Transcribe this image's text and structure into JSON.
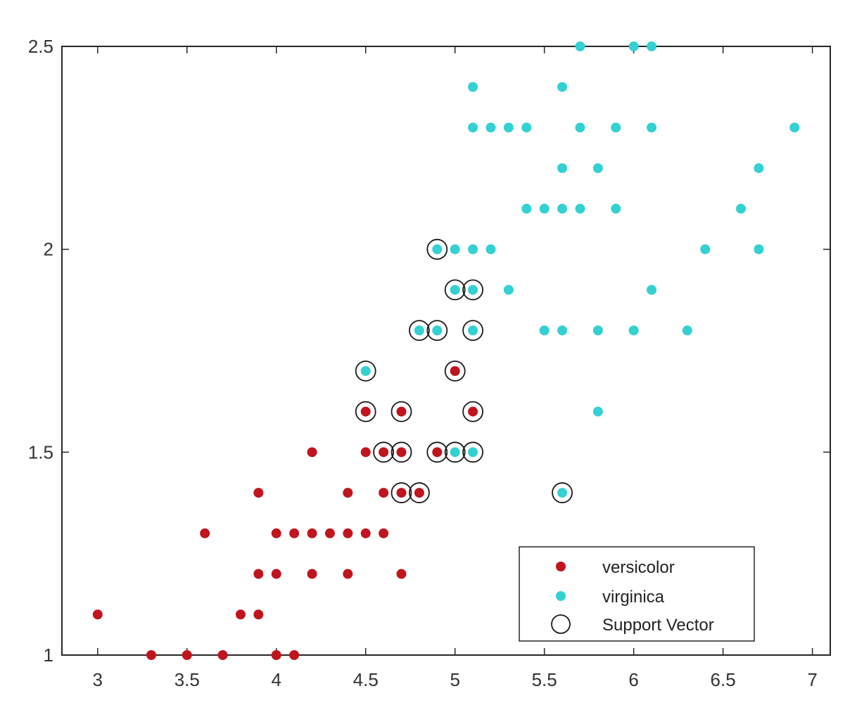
{
  "chart_data": {
    "type": "scatter",
    "title": "",
    "xlabel": "",
    "ylabel": "",
    "xlim": [
      2.8,
      7.1
    ],
    "ylim": [
      1.0,
      2.5
    ],
    "xticks": [
      3,
      3.5,
      4,
      4.5,
      5,
      5.5,
      6,
      6.5,
      7
    ],
    "xtick_labels": [
      "3",
      "3.5",
      "4",
      "4.5",
      "5",
      "5.5",
      "6",
      "6.5",
      "7"
    ],
    "yticks": [
      1,
      1.5,
      2,
      2.5
    ],
    "ytick_labels": [
      "1",
      "1.5",
      "2",
      "2.5"
    ],
    "grid": false,
    "legend_position": "bottom-right",
    "series": [
      {
        "name": "versicolor",
        "marker": "filled-dot",
        "color": "#c0141e",
        "points": [
          [
            3.0,
            1.1
          ],
          [
            3.3,
            1.0
          ],
          [
            3.5,
            1.0
          ],
          [
            3.7,
            1.0
          ],
          [
            4.0,
            1.0
          ],
          [
            4.1,
            1.0
          ],
          [
            3.8,
            1.1
          ],
          [
            3.9,
            1.1
          ],
          [
            3.9,
            1.2
          ],
          [
            4.0,
            1.2
          ],
          [
            4.2,
            1.2
          ],
          [
            4.4,
            1.2
          ],
          [
            4.7,
            1.2
          ],
          [
            3.6,
            1.3
          ],
          [
            4.0,
            1.3
          ],
          [
            4.1,
            1.3
          ],
          [
            4.2,
            1.3
          ],
          [
            4.3,
            1.3
          ],
          [
            4.4,
            1.3
          ],
          [
            4.5,
            1.3
          ],
          [
            4.6,
            1.3
          ],
          [
            3.9,
            1.4
          ],
          [
            4.4,
            1.4
          ],
          [
            4.6,
            1.4
          ],
          [
            4.7,
            1.4
          ],
          [
            4.8,
            1.4
          ],
          [
            4.2,
            1.5
          ],
          [
            4.5,
            1.5
          ],
          [
            4.6,
            1.5
          ],
          [
            4.7,
            1.5
          ],
          [
            4.9,
            1.5
          ],
          [
            4.5,
            1.6
          ],
          [
            4.7,
            1.6
          ],
          [
            5.1,
            1.6
          ],
          [
            5.0,
            1.7
          ]
        ]
      },
      {
        "name": "virginica",
        "marker": "filled-dot",
        "color": "#33d1d1",
        "points": [
          [
            5.0,
            1.5
          ],
          [
            5.1,
            1.5
          ],
          [
            5.6,
            1.4
          ],
          [
            5.8,
            1.6
          ],
          [
            4.5,
            1.7
          ],
          [
            4.8,
            1.8
          ],
          [
            4.9,
            1.8
          ],
          [
            5.1,
            1.8
          ],
          [
            5.5,
            1.8
          ],
          [
            5.6,
            1.8
          ],
          [
            5.8,
            1.8
          ],
          [
            6.0,
            1.8
          ],
          [
            6.3,
            1.8
          ],
          [
            5.0,
            1.9
          ],
          [
            5.1,
            1.9
          ],
          [
            5.3,
            1.9
          ],
          [
            6.1,
            1.9
          ],
          [
            4.9,
            2.0
          ],
          [
            5.0,
            2.0
          ],
          [
            5.1,
            2.0
          ],
          [
            5.2,
            2.0
          ],
          [
            6.4,
            2.0
          ],
          [
            6.7,
            2.0
          ],
          [
            5.4,
            2.1
          ],
          [
            5.5,
            2.1
          ],
          [
            5.6,
            2.1
          ],
          [
            5.7,
            2.1
          ],
          [
            5.9,
            2.1
          ],
          [
            6.6,
            2.1
          ],
          [
            5.6,
            2.2
          ],
          [
            5.8,
            2.2
          ],
          [
            6.7,
            2.2
          ],
          [
            5.1,
            2.3
          ],
          [
            5.2,
            2.3
          ],
          [
            5.3,
            2.3
          ],
          [
            5.4,
            2.3
          ],
          [
            5.7,
            2.3
          ],
          [
            5.9,
            2.3
          ],
          [
            6.1,
            2.3
          ],
          [
            6.9,
            2.3
          ],
          [
            5.1,
            2.4
          ],
          [
            5.6,
            2.4
          ],
          [
            5.7,
            2.5
          ],
          [
            6.0,
            2.5
          ],
          [
            6.1,
            2.5
          ]
        ]
      },
      {
        "name": "Support Vector",
        "marker": "open-circle",
        "color": "#1a1a1a",
        "points": [
          [
            4.9,
            2.0
          ],
          [
            5.0,
            1.9
          ],
          [
            5.1,
            1.9
          ],
          [
            4.8,
            1.8
          ],
          [
            4.9,
            1.8
          ],
          [
            5.1,
            1.8
          ],
          [
            4.5,
            1.7
          ],
          [
            5.0,
            1.7
          ],
          [
            4.5,
            1.6
          ],
          [
            4.7,
            1.6
          ],
          [
            5.1,
            1.6
          ],
          [
            4.6,
            1.5
          ],
          [
            4.7,
            1.5
          ],
          [
            4.9,
            1.5
          ],
          [
            5.0,
            1.5
          ],
          [
            5.1,
            1.5
          ],
          [
            4.7,
            1.4
          ],
          [
            4.8,
            1.4
          ],
          [
            5.6,
            1.4
          ]
        ]
      }
    ]
  }
}
